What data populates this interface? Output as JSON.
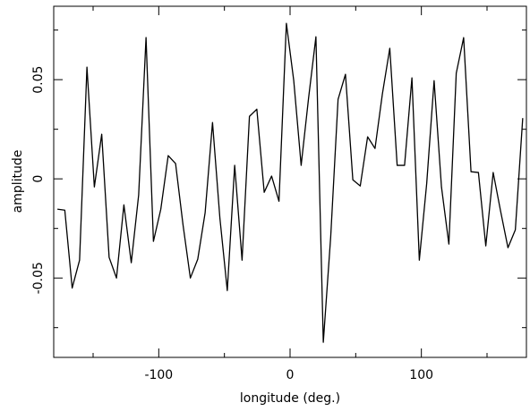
{
  "chart_data": {
    "type": "line",
    "xlabel": "longitude (deg.)",
    "ylabel": "amplitude",
    "xlim": [
      -180,
      180
    ],
    "ylim": [
      -0.09,
      0.087
    ],
    "xticks": [
      -100,
      0,
      100
    ],
    "yticks": [
      -0.05,
      0,
      0.05
    ],
    "xminorticks": [
      -150,
      -50,
      50,
      150
    ],
    "yminorticks": [
      -0.075,
      -0.025,
      0.025,
      0.075
    ],
    "color": "#000000",
    "x": [
      -177.19,
      -171.56,
      -165.94,
      -160.31,
      -154.69,
      -149.06,
      -143.44,
      -137.81,
      -132.19,
      -126.56,
      -120.94,
      -115.31,
      -109.69,
      -104.06,
      -98.44,
      -92.81,
      -87.19,
      -81.56,
      -75.94,
      -70.31,
      -64.69,
      -59.06,
      -53.44,
      -47.81,
      -42.19,
      -36.56,
      -30.94,
      -25.31,
      -19.69,
      -14.06,
      -8.44,
      -2.81,
      2.81,
      8.44,
      14.06,
      19.69,
      25.31,
      30.94,
      36.56,
      42.19,
      47.81,
      53.44,
      59.06,
      64.69,
      70.31,
      75.94,
      81.56,
      87.19,
      92.81,
      98.44,
      104.06,
      109.69,
      115.31,
      120.94,
      126.56,
      132.19,
      137.81,
      143.44,
      149.06,
      154.69,
      160.31,
      165.94,
      171.56,
      177.19
    ],
    "values": [
      -0.0153,
      -0.0158,
      -0.055,
      -0.041,
      0.0563,
      -0.0041,
      0.0225,
      -0.0396,
      -0.05,
      -0.0131,
      -0.0423,
      -0.0081,
      0.0712,
      -0.0315,
      -0.0153,
      0.0117,
      0.0077,
      -0.023,
      -0.05,
      -0.0405,
      -0.0171,
      0.0284,
      -0.0198,
      -0.0563,
      0.0068,
      -0.041,
      0.0315,
      0.0351,
      -0.0068,
      0.0014,
      -0.0113,
      0.0784,
      0.0495,
      0.0068,
      0.0405,
      0.0716,
      -0.0824,
      -0.0293,
      0.0401,
      0.0527,
      -0.0005,
      -0.0036,
      0.0212,
      0.0153,
      0.0428,
      0.0658,
      0.0068,
      0.0068,
      0.0509,
      -0.041,
      -0.0023,
      0.0495,
      -0.0041,
      -0.0329,
      0.0532,
      0.0712,
      0.0036,
      0.0032,
      -0.0338,
      0.0032,
      -0.0162,
      -0.0347,
      -0.0257,
      0.0306
    ]
  }
}
